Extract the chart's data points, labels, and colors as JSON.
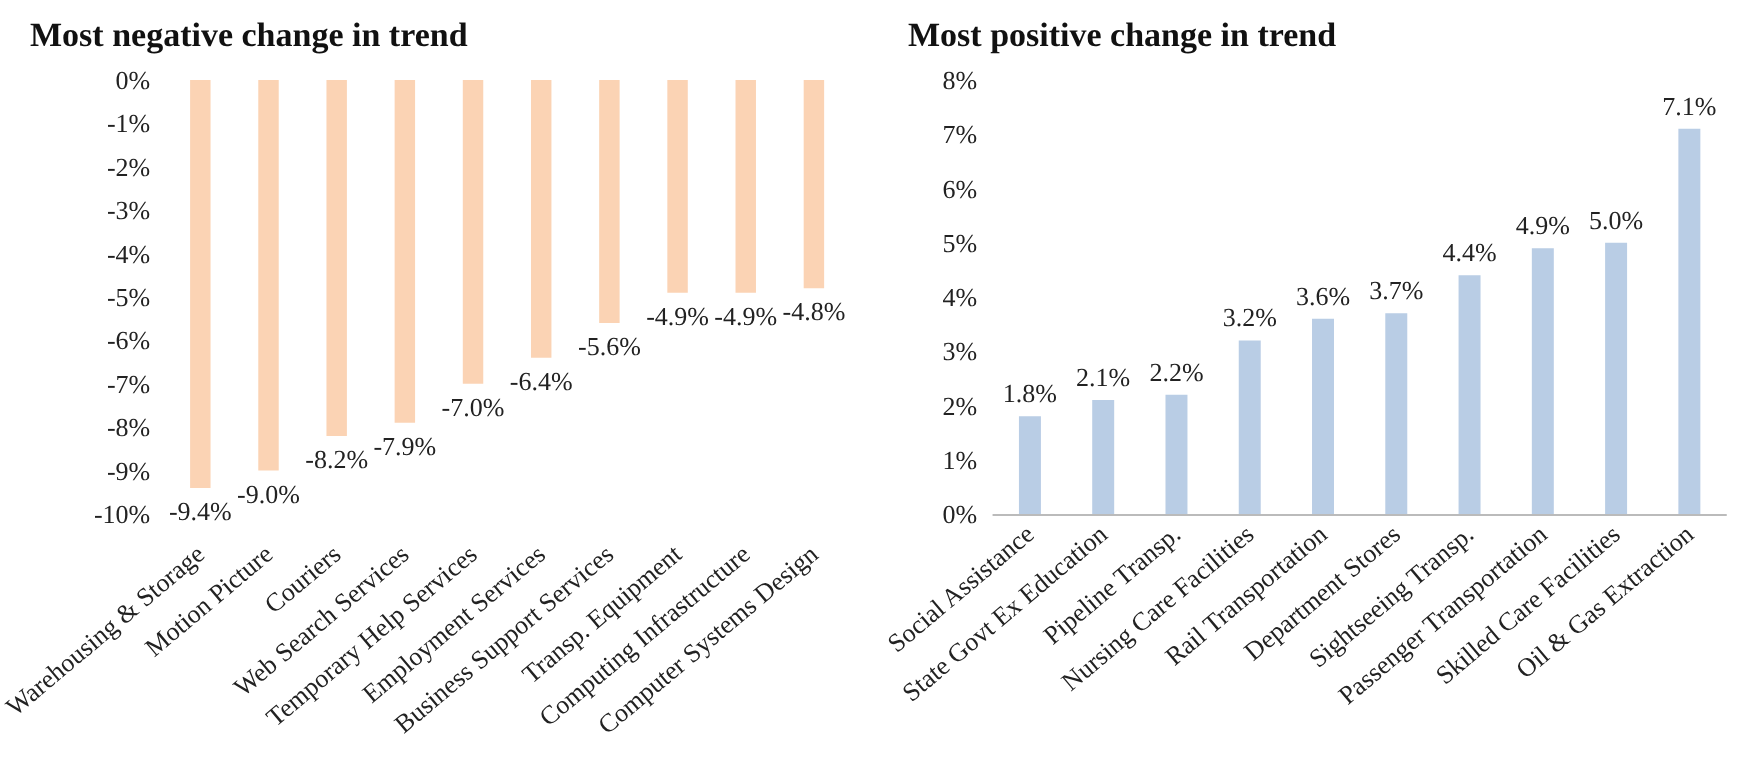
{
  "chart_data": [
    {
      "type": "bar",
      "title": "Most negative change in trend",
      "categories": [
        "Warehousing & Storage",
        "Motion Picture",
        "Couriers",
        "Web Search Services",
        "Temporary Help Services",
        "Employment Services",
        "Business Support Services",
        "Transp. Equipment",
        "Computing Infrastructure",
        "Computer Systems Design"
      ],
      "values": [
        -9.4,
        -9.0,
        -8.2,
        -7.9,
        -7.0,
        -6.4,
        -5.6,
        -4.9,
        -4.9,
        -4.8
      ],
      "color": "#fbd3b4",
      "value_labels": [
        "-9.4%",
        "-9.0%",
        "-8.2%",
        "-7.9%",
        "-7.0%",
        "-6.4%",
        "-5.6%",
        "-4.9%",
        "-4.9%",
        "-4.8%"
      ],
      "ylim": [
        -10,
        0
      ],
      "yticks": [
        {
          "value": -10,
          "label": "-10%"
        },
        {
          "value": -9,
          "label": "-9%"
        },
        {
          "value": -8,
          "label": "-8%"
        },
        {
          "value": -7,
          "label": "-7%"
        },
        {
          "value": -6,
          "label": "-6%"
        },
        {
          "value": -5,
          "label": "-5%"
        },
        {
          "value": -4,
          "label": "-4%"
        },
        {
          "value": -3,
          "label": "-3%"
        },
        {
          "value": -2,
          "label": "-2%"
        },
        {
          "value": -1,
          "label": "-1%"
        },
        {
          "value": 0,
          "label": "0%"
        }
      ]
    },
    {
      "type": "bar",
      "title": "Most positive change in trend",
      "categories": [
        "Social Assistance",
        "State Govt Ex Education",
        "Pipeline Transp.",
        "Nursing Care Facilities",
        "Rail Transportation",
        "Department Stores",
        "Sightseeing Transp.",
        "Passenger Transportation",
        "Skilled Care Facilities",
        "Oil & Gas Extraction"
      ],
      "values": [
        1.8,
        2.1,
        2.2,
        3.2,
        3.6,
        3.7,
        4.4,
        4.9,
        5.0,
        7.1
      ],
      "color": "#b9cde5",
      "value_labels": [
        "1.8%",
        "2.1%",
        "2.2%",
        "3.2%",
        "3.6%",
        "3.7%",
        "4.4%",
        "4.9%",
        "5.0%",
        "7.1%"
      ],
      "ylim": [
        0,
        8
      ],
      "yticks": [
        {
          "value": 0,
          "label": "0%"
        },
        {
          "value": 1,
          "label": "1%"
        },
        {
          "value": 2,
          "label": "2%"
        },
        {
          "value": 3,
          "label": "3%"
        },
        {
          "value": 4,
          "label": "4%"
        },
        {
          "value": 5,
          "label": "5%"
        },
        {
          "value": 6,
          "label": "6%"
        },
        {
          "value": 7,
          "label": "7%"
        },
        {
          "value": 8,
          "label": "8%"
        }
      ]
    }
  ]
}
